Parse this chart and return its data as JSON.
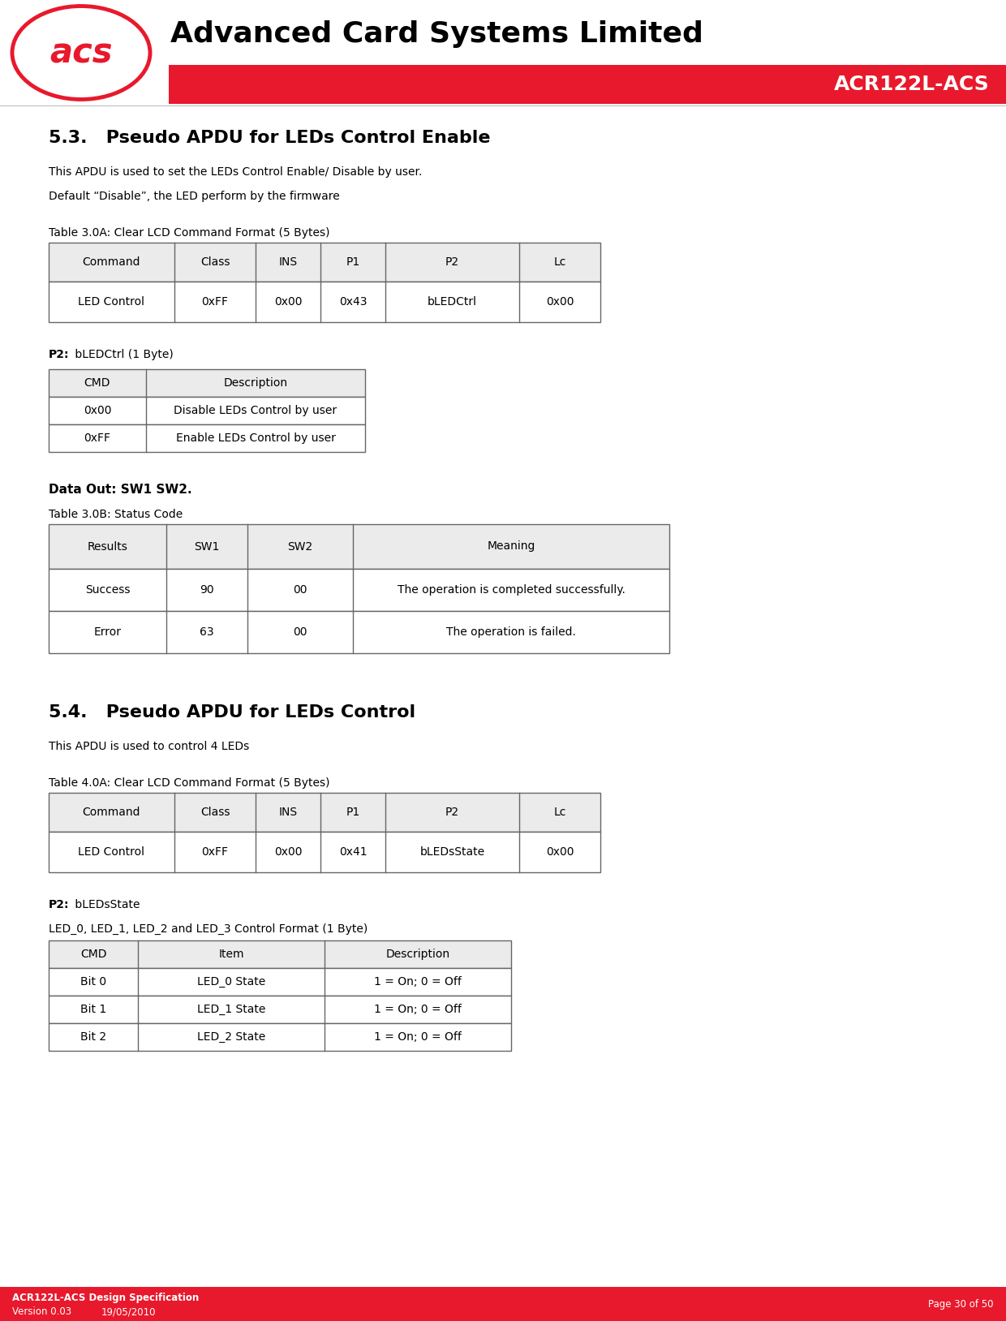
{
  "header_title": "Advanced Card Systems Limited",
  "header_subtitle": "ACR122L-ACS",
  "header_red": "#E8192C",
  "logo_red": "#E8192C",
  "section_53_title": "5.3.   Pseudo APDU for LEDs Control Enable",
  "section_53_desc1": "This APDU is used to set the LEDs Control Enable/ Disable by user.",
  "section_53_desc2": "Default “Disable”, the LED perform by the firmware",
  "table_30a_title": "Table 3.0A: Clear LCD Command Format (5 Bytes)",
  "table_30a_headers": [
    "Command",
    "Class",
    "INS",
    "P1",
    "P2",
    "Lc"
  ],
  "table_30a_row": [
    "LED Control",
    "0xFF",
    "0x00",
    "0x43",
    "bLEDCtrl",
    "0x00"
  ],
  "p2_label_53": "P2:",
  "p2_desc_53": " bLEDCtrl (1 Byte)",
  "table_p2_53_headers": [
    "CMD",
    "Description"
  ],
  "table_p2_53_rows": [
    [
      "0x00",
      "Disable LEDs Control by user"
    ],
    [
      "0xFF",
      "Enable LEDs Control by user"
    ]
  ],
  "data_out_label": "Data Out: SW1 SW2.",
  "table_30b_title": "Table 3.0B: Status Code",
  "table_30b_headers": [
    "Results",
    "SW1",
    "SW2",
    "Meaning"
  ],
  "table_30b_rows": [
    [
      "Success",
      "90",
      "00",
      "The operation is completed successfully."
    ],
    [
      "Error",
      "63",
      "00",
      "The operation is failed."
    ]
  ],
  "section_54_title": "5.4.   Pseudo APDU for LEDs Control",
  "section_54_desc1": "This APDU is used to control 4 LEDs",
  "table_40a_title": "Table 4.0A: Clear LCD Command Format (5 Bytes)",
  "table_40a_headers": [
    "Command",
    "Class",
    "INS",
    "P1",
    "P2",
    "Lc"
  ],
  "table_40a_row": [
    "LED Control",
    "0xFF",
    "0x00",
    "0x41",
    "bLEDsState",
    "0x00"
  ],
  "p2_label_54": "P2:",
  "p2_desc_54": " bLEDsState",
  "table_p2_54_title": "LED_0, LED_1, LED_2 and LED_3 Control Format (1 Byte)",
  "table_p2_54_headers": [
    "CMD",
    "Item",
    "Description"
  ],
  "table_p2_54_rows": [
    [
      "Bit 0",
      "LED_0 State",
      "1 = On; 0 = Off"
    ],
    [
      "Bit 1",
      "LED_1 State",
      "1 = On; 0 = Off"
    ],
    [
      "Bit 2",
      "LED_2 State",
      "1 = On; 0 = Off"
    ]
  ],
  "footer_left1": "ACR122L-ACS Design Specification",
  "footer_left2": "Version 0.03",
  "footer_left3": "19/05/2010",
  "footer_right": "Page 30 of 50",
  "footer_bg": "#E8192C",
  "footer_text_color": "#FFFFFF",
  "bg_color": "#FFFFFF",
  "table_border_color": "#666666",
  "text_color": "#000000"
}
